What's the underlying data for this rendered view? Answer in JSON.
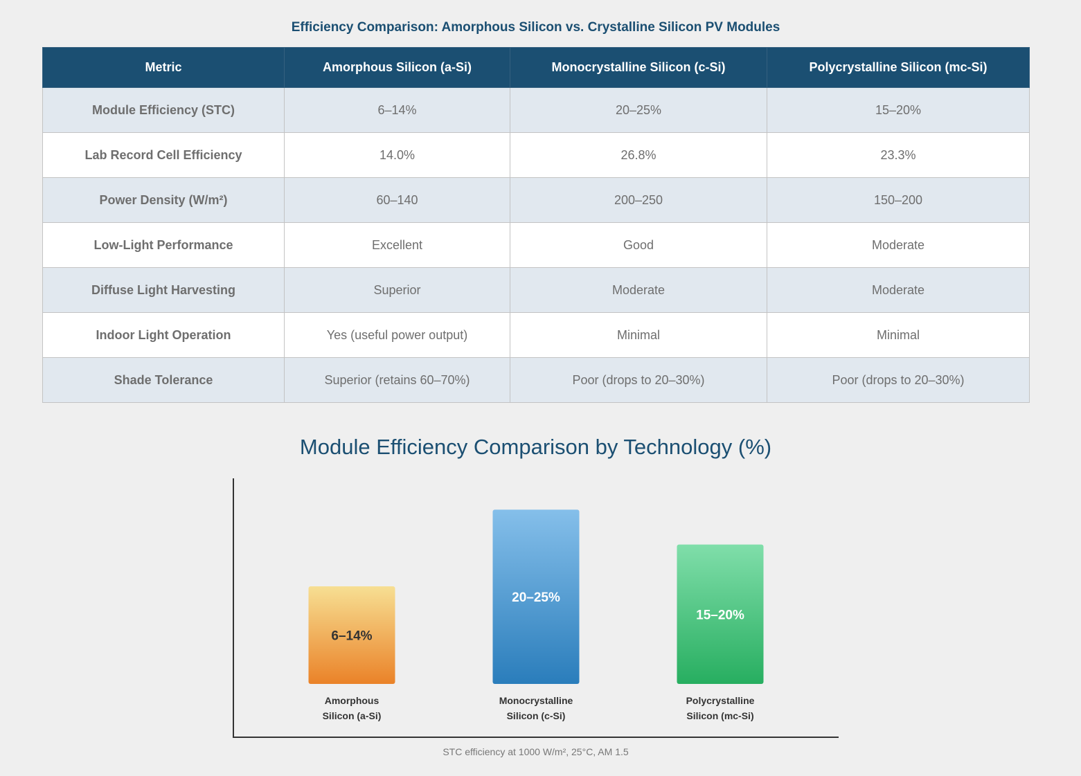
{
  "table": {
    "title": "Efficiency Comparison: Amorphous Silicon vs. Crystalline Silicon PV Modules",
    "headers": [
      "Metric",
      "Amorphous Silicon (a-Si)",
      "Monocrystalline Silicon (c-Si)",
      "Polycrystalline Silicon (mc-Si)"
    ],
    "rows": [
      [
        "Module Efficiency (STC)",
        "6–14%",
        "20–25%",
        "15–20%"
      ],
      [
        "Lab Record Cell Efficiency",
        "14.0%",
        "26.8%",
        "23.3%"
      ],
      [
        "Power Density (W/m²)",
        "60–140",
        "200–250",
        "150–200"
      ],
      [
        "Low-Light Performance",
        "Excellent",
        "Good",
        "Moderate"
      ],
      [
        "Diffuse Light Harvesting",
        "Superior",
        "Moderate",
        "Moderate"
      ],
      [
        "Indoor Light Operation",
        "Yes (useful power output)",
        "Minimal",
        "Minimal"
      ],
      [
        "Shade Tolerance",
        "Superior (retains 60–70%)",
        "Poor (drops to 20–30%)",
        "Poor (drops to 20–30%)"
      ]
    ]
  },
  "chart_data": {
    "type": "bar",
    "title": "Module Efficiency Comparison by Technology (%)",
    "categories": [
      [
        "Amorphous",
        "Silicon (a-Si)"
      ],
      [
        "Monocrystalline",
        "Silicon (c-Si)"
      ],
      [
        "Polycrystalline",
        "Silicon (mc-Si)"
      ]
    ],
    "values": [
      14,
      25,
      20
    ],
    "data_labels": [
      "6–14%",
      "20–25%",
      "15–20%"
    ],
    "bar_colors": [
      [
        "#f7df93",
        "#ea8228"
      ],
      [
        "#85bfea",
        "#2a7dbb"
      ],
      [
        "#80deaa",
        "#27ae60"
      ]
    ],
    "label_colors": [
      "#333333",
      "#ffffff",
      "#ffffff"
    ],
    "ylim": [
      0,
      29
    ],
    "grid": false,
    "xlabel": "",
    "ylabel": "",
    "note": "STC efficiency at 1000 W/m², 25°C, AM 1.5"
  }
}
